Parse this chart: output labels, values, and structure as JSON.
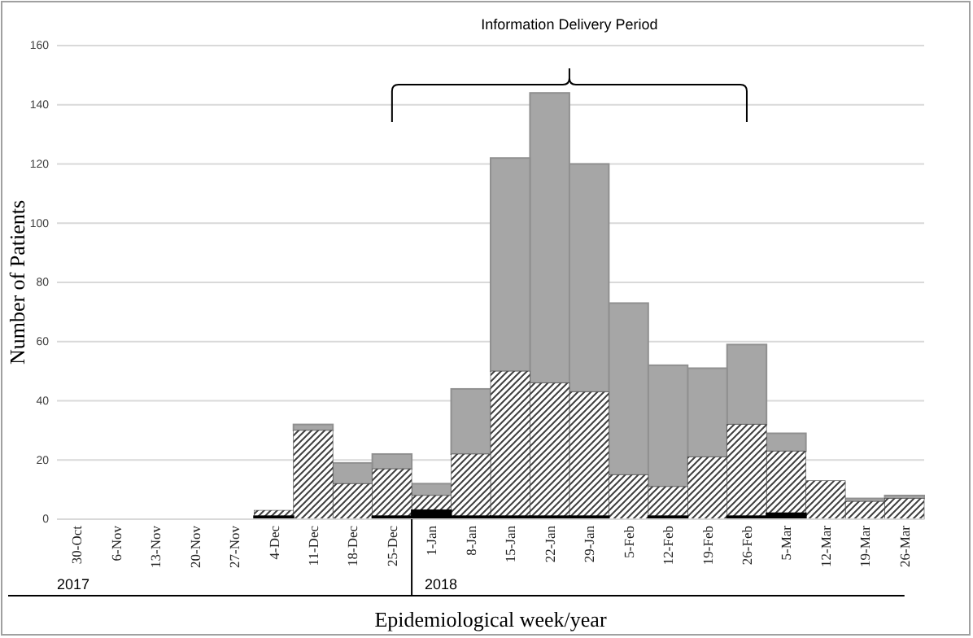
{
  "chart_data": {
    "type": "bar",
    "stacked": true,
    "xlabel": "Epidemiological week/year",
    "ylabel": "Number of Patients",
    "categories": [
      "30-Oct",
      "6-Nov",
      "13-Nov",
      "20-Nov",
      "27-Nov",
      "4-Dec",
      "11-Dec",
      "18-Dec",
      "25-Dec",
      "1-Jan",
      "8-Jan",
      "15-Jan",
      "22-Jan",
      "29-Jan",
      "5-Feb",
      "12-Feb",
      "19-Feb",
      "26-Feb",
      "5-Mar",
      "12-Mar",
      "19-Mar",
      "26-Mar"
    ],
    "series": [
      {
        "color": "#000000",
        "values": [
          0,
          0,
          0,
          0,
          0,
          1,
          0,
          0,
          1,
          3,
          1,
          1,
          1,
          1,
          0,
          1,
          0,
          1,
          2,
          0,
          0,
          0
        ]
      },
      {
        "color": "#404040",
        "values": [
          0,
          0,
          0,
          0,
          0,
          2,
          30,
          12,
          16,
          5,
          21,
          49,
          45,
          42,
          15,
          10,
          21,
          31,
          21,
          13,
          6,
          7
        ]
      },
      {
        "color": "#a6a6a6",
        "values": [
          0,
          0,
          0,
          0,
          0,
          0,
          2,
          7,
          5,
          4,
          22,
          72,
          98,
          77,
          58,
          41,
          30,
          27,
          6,
          0,
          1,
          1
        ]
      }
    ],
    "ylim": [
      0,
      160
    ],
    "yticks": [
      0,
      20,
      40,
      60,
      80,
      100,
      120,
      140,
      160
    ],
    "grid": "y",
    "legend": false,
    "annotations": [
      "Information Delivery Period",
      "2017",
      "2018"
    ]
  }
}
